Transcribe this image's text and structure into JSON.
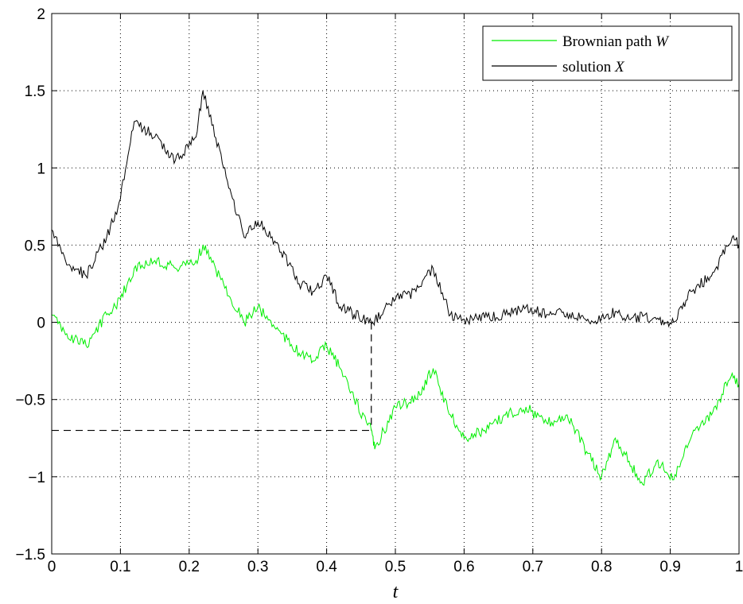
{
  "chart_data": {
    "type": "line",
    "title": "",
    "xlabel": "t",
    "ylabel": "",
    "xlim": [
      0,
      1
    ],
    "ylim": [
      -1.5,
      2
    ],
    "xticks": [
      "0",
      "0.1",
      "0.2",
      "0.3",
      "0.4",
      "0.5",
      "0.6",
      "0.7",
      "0.8",
      "0.9",
      "1"
    ],
    "yticks": [
      "2",
      "1.5",
      "1",
      "0.5",
      "0",
      "−0.5",
      "−1",
      "−1.5"
    ],
    "xtick_values": [
      0,
      0.1,
      0.2,
      0.3,
      0.4,
      0.5,
      0.6,
      0.7,
      0.8,
      0.9,
      1
    ],
    "ytick_values": [
      2,
      1.5,
      1,
      0.5,
      0,
      -0.5,
      -1,
      -1.5
    ],
    "grid": true,
    "legend_position": "top-right",
    "legend": {
      "w_prefix": "Brownian path ",
      "w_symbol": "W",
      "x_prefix": "solution ",
      "x_symbol": "X"
    },
    "series": [
      {
        "name": "Brownian path W",
        "color": "#00ee00",
        "x": [
          0,
          0.02,
          0.05,
          0.08,
          0.1,
          0.12,
          0.15,
          0.18,
          0.21,
          0.22,
          0.25,
          0.28,
          0.3,
          0.33,
          0.36,
          0.38,
          0.4,
          0.42,
          0.44,
          0.465,
          0.47,
          0.5,
          0.53,
          0.555,
          0.58,
          0.6,
          0.63,
          0.66,
          0.69,
          0.72,
          0.75,
          0.78,
          0.8,
          0.82,
          0.84,
          0.86,
          0.88,
          0.905,
          0.93,
          0.96,
          0.99,
          1.0
        ],
        "y": [
          0.05,
          -0.08,
          -0.15,
          0.05,
          0.15,
          0.35,
          0.4,
          0.35,
          0.4,
          0.5,
          0.25,
          0.0,
          0.1,
          -0.05,
          -0.2,
          -0.25,
          -0.15,
          -0.3,
          -0.5,
          -0.7,
          -0.82,
          -0.55,
          -0.5,
          -0.3,
          -0.6,
          -0.75,
          -0.7,
          -0.6,
          -0.55,
          -0.65,
          -0.6,
          -0.85,
          -1.0,
          -0.75,
          -0.9,
          -1.05,
          -0.9,
          -1.02,
          -0.75,
          -0.6,
          -0.33,
          -0.4
        ]
      },
      {
        "name": "solution X",
        "color": "#000000",
        "x": [
          0,
          0.02,
          0.05,
          0.08,
          0.1,
          0.12,
          0.15,
          0.18,
          0.21,
          0.22,
          0.25,
          0.28,
          0.3,
          0.33,
          0.36,
          0.38,
          0.4,
          0.42,
          0.44,
          0.465,
          0.47,
          0.5,
          0.53,
          0.555,
          0.58,
          0.6,
          0.63,
          0.66,
          0.69,
          0.72,
          0.75,
          0.78,
          0.8,
          0.82,
          0.84,
          0.86,
          0.88,
          0.905,
          0.93,
          0.96,
          0.99,
          1.0
        ],
        "y": [
          0.6,
          0.4,
          0.3,
          0.55,
          0.8,
          1.3,
          1.2,
          1.05,
          1.2,
          1.5,
          1.0,
          0.55,
          0.65,
          0.5,
          0.25,
          0.2,
          0.3,
          0.1,
          0.05,
          0.0,
          0.01,
          0.15,
          0.2,
          0.35,
          0.05,
          0.02,
          0.03,
          0.05,
          0.1,
          0.05,
          0.06,
          0.02,
          0.03,
          0.07,
          0.02,
          0.04,
          0.02,
          0.0,
          0.2,
          0.3,
          0.55,
          0.5
        ]
      }
    ],
    "annotations": {
      "vertical_dash_x": 0.465,
      "horizontal_dash_y": -0.7,
      "dash_color": "#000000"
    }
  }
}
